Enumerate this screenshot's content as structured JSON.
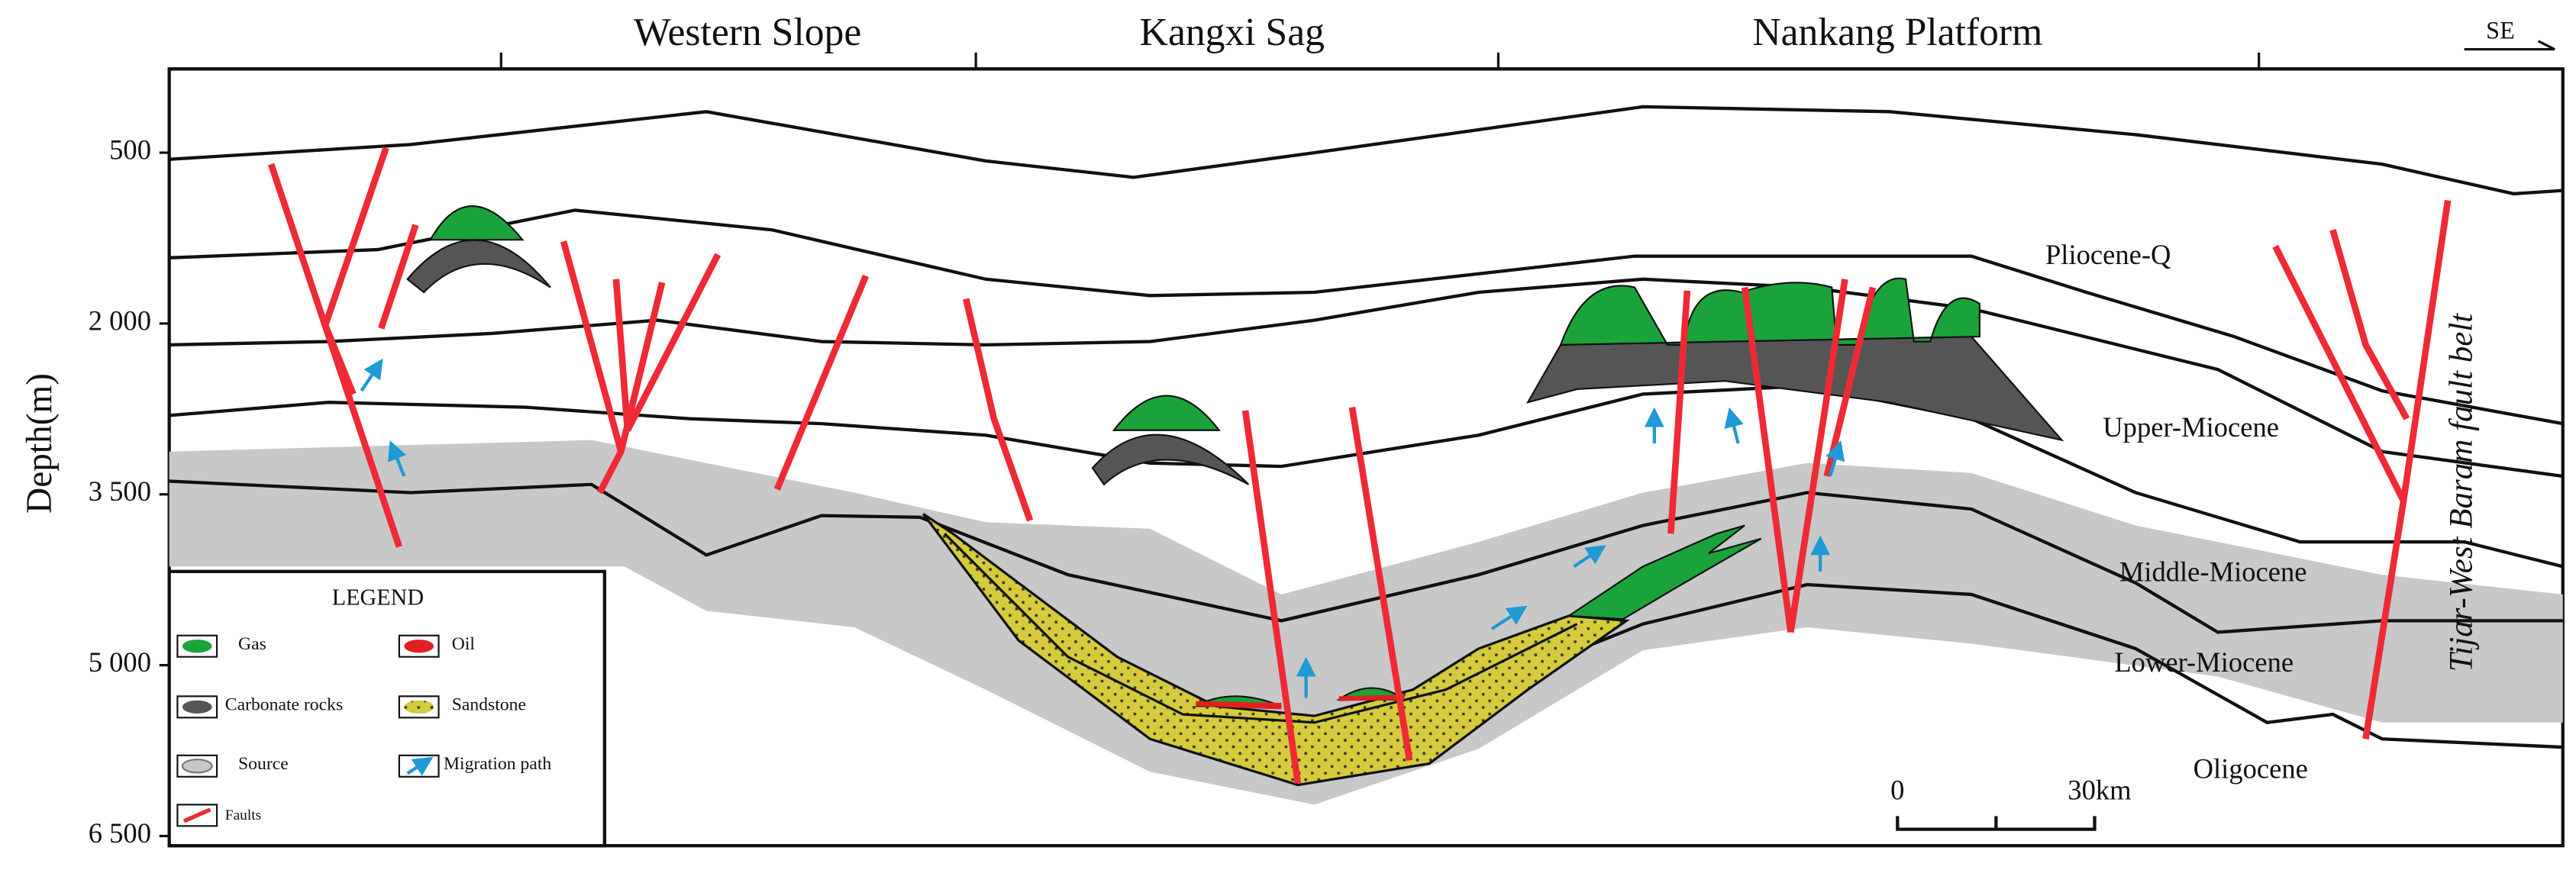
{
  "header": {
    "regions": [
      "Western Slope",
      "Kangxi Sag",
      "Nankang Platform"
    ],
    "direction": "SE"
  },
  "depth_axis": {
    "label": "Depth(m)",
    "ylim": [
      -235,
      6585
    ],
    "ticks": [
      {
        "value": 500,
        "label": "500"
      },
      {
        "value": 2000,
        "label": "2 000"
      },
      {
        "value": 3500,
        "label": "3 500"
      },
      {
        "value": 5000,
        "label": "5 000"
      },
      {
        "value": 6500,
        "label": "6 500"
      }
    ]
  },
  "formations": [
    "Pliocene-Q",
    "Upper-Miocene",
    "Middle-Miocene",
    "Lower-Miocene",
    "Oligocene"
  ],
  "fault_belt": "Tijar-West Baram fault belt",
  "legend": {
    "title": "LEGEND",
    "items": [
      "Gas",
      "Oil",
      "Carbonate rocks",
      "Sandstone",
      "Source",
      "Migration path",
      "Faults"
    ]
  },
  "scale_bar": {
    "labels": [
      "0",
      "30km"
    ]
  }
}
